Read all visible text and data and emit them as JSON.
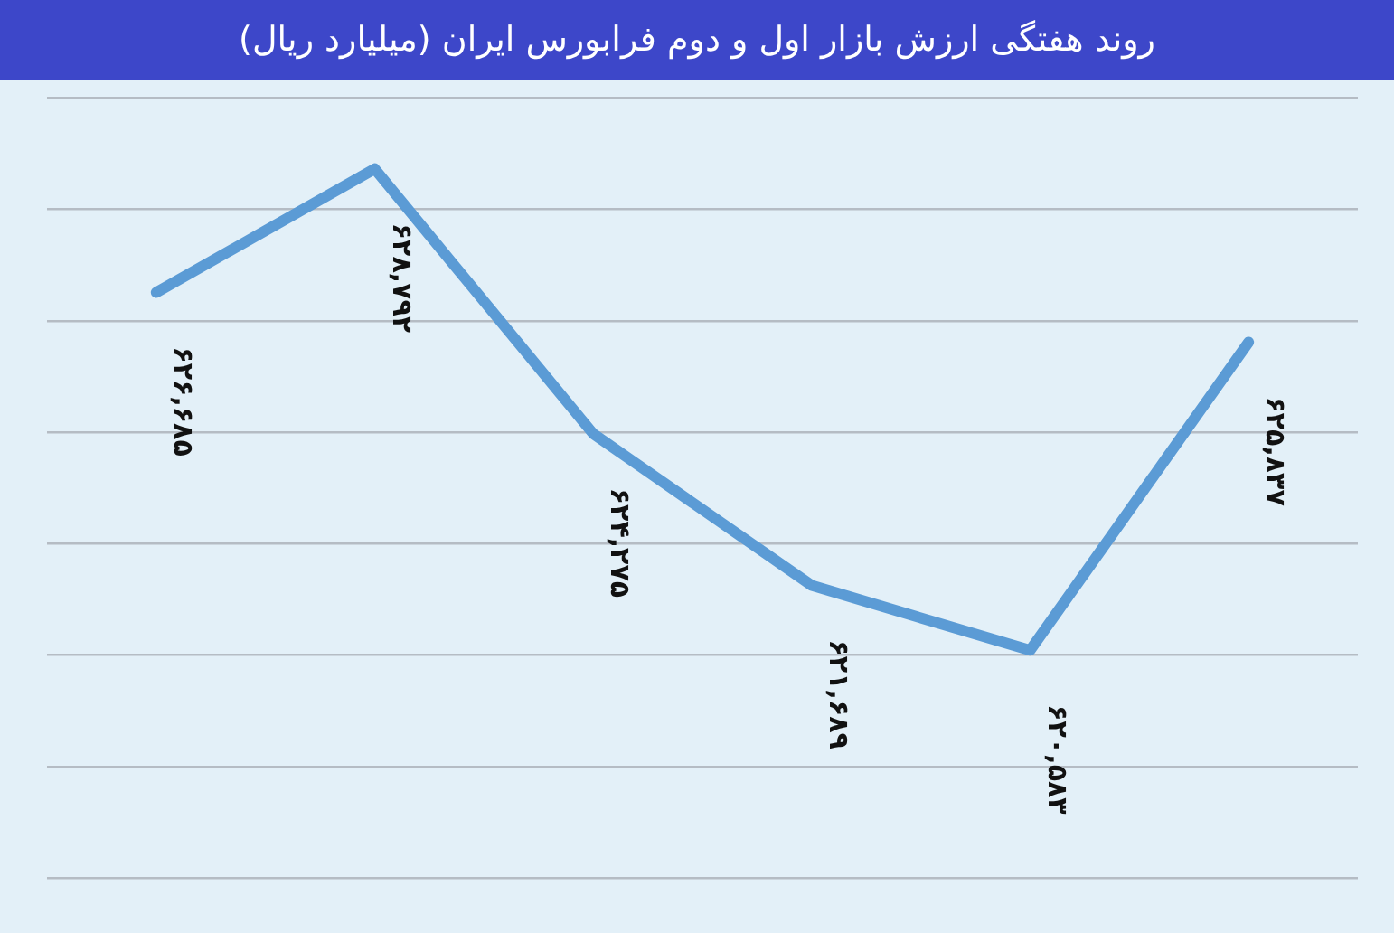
{
  "chart_data": {
    "type": "line",
    "title": "روند هفتگی ارزش بازار اول و دوم فرابورس ایران (میلیارد ریال)",
    "categories": [
      null,
      null,
      null,
      null,
      null,
      null
    ],
    "series": [
      {
        "color": "#5b9bd5",
        "values": [
          626685,
          628792,
          624275,
          621689,
          620583,
          625837
        ],
        "value_labels": [
          "۶۲۶,۶۸۵",
          "۶۲۸,۷۹۲",
          "۶۲۴,۲۷۵",
          "۶۲۱,۶۸۹",
          "۶۲۰,۵۸۳",
          "۶۲۵,۸۳۷"
        ]
      }
    ],
    "ylim": [
      616700,
      630000
    ],
    "yticks": [
      {
        "value": 616700,
        "label": null
      },
      {
        "value": 618600,
        "label": null
      },
      {
        "value": 620500,
        "label": null
      },
      {
        "value": 622400,
        "label": null
      },
      {
        "value": 624300,
        "label": null
      },
      {
        "value": 626200,
        "label": null
      },
      {
        "value": 628100,
        "label": null
      },
      {
        "value": 630000,
        "label": null
      }
    ],
    "grid": "y",
    "legend": false,
    "marker": "none",
    "line_style": "solid"
  }
}
